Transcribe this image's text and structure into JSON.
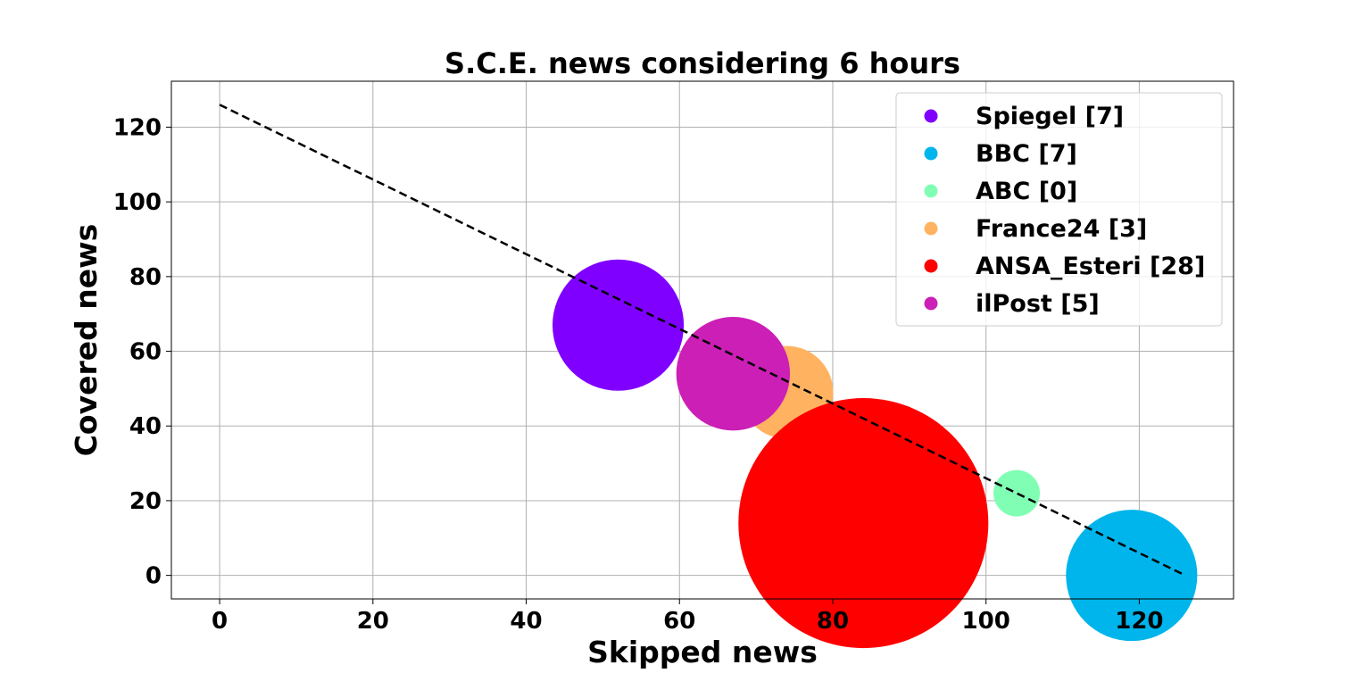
{
  "chart_data": {
    "type": "scatter",
    "title": "S.C.E. news considering 6 hours",
    "xlabel": "Skipped news",
    "ylabel": "Covered news",
    "xlim": [
      -6.3,
      132.3
    ],
    "ylim": [
      -6.3,
      132.3
    ],
    "xticks": [
      0,
      20,
      40,
      60,
      80,
      100,
      120
    ],
    "yticks": [
      0,
      20,
      40,
      60,
      80,
      100,
      120
    ],
    "grid": true,
    "legend_position": "top-right",
    "series": [
      {
        "name": "Spiegel [7]",
        "color": "#8000ff",
        "x": 52,
        "y": 67,
        "size": 7
      },
      {
        "name": "BBC [7]",
        "color": "#00b5eb",
        "x": 119,
        "y": 0,
        "size": 7
      },
      {
        "name": "ABC [0]",
        "color": "#80ffb4",
        "x": 104,
        "y": 22,
        "size": 0
      },
      {
        "name": "France24 [3]",
        "color": "#ffb360",
        "x": 74,
        "y": 49,
        "size": 3
      },
      {
        "name": "ANSA_Esteri [28]",
        "color": "#ff0000",
        "x": 84,
        "y": 14,
        "size": 28
      },
      {
        "name": "ilPost [5]",
        "color": "#cc1fb6",
        "x": 67,
        "y": 54,
        "size": 5
      }
    ],
    "trend_line": {
      "x": [
        0,
        126
      ],
      "y": [
        126,
        0
      ],
      "style": "dashed",
      "color": "#000000"
    }
  }
}
